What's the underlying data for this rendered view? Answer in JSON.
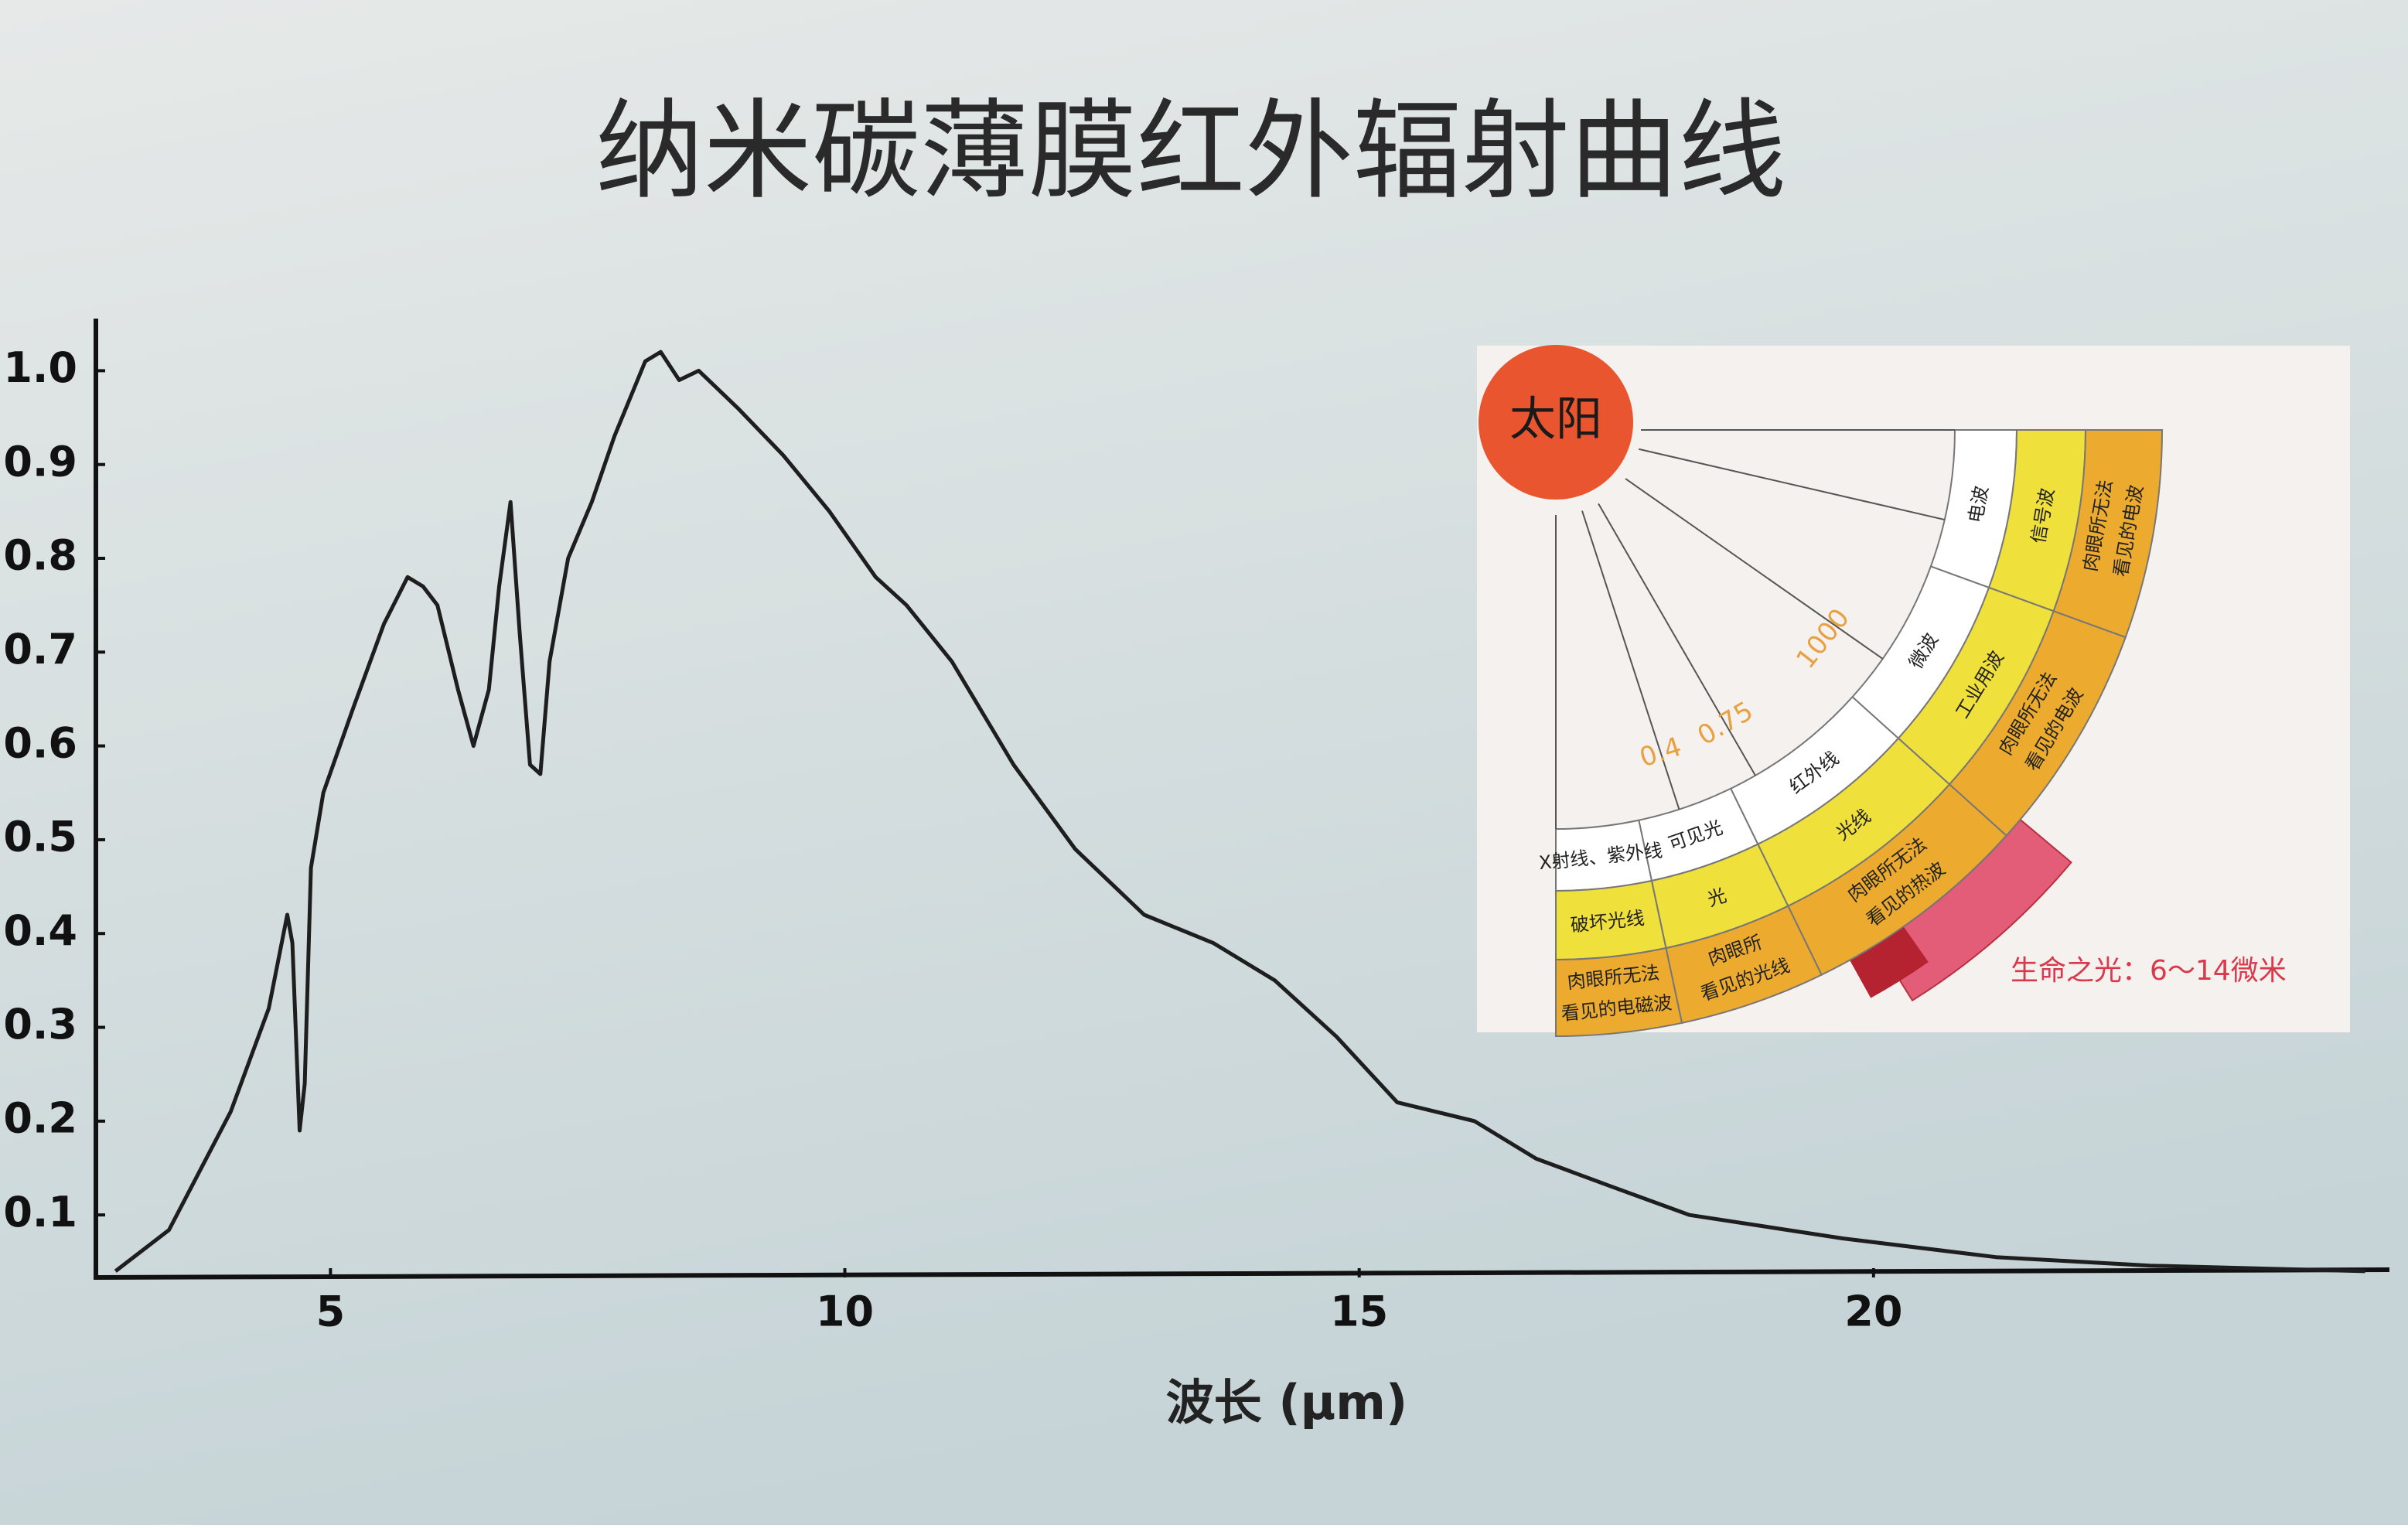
{
  "chart_data": {
    "type": "line",
    "title": "纳米碳薄膜红外辐射曲线",
    "xlabel": "波长 (μm)",
    "color": "#1e1e1e",
    "grid": false,
    "x": [
      2.91,
      3.43,
      4.03,
      4.4,
      4.58,
      4.63,
      4.7,
      4.75,
      4.81,
      4.93,
      5.22,
      5.52,
      5.75,
      5.9,
      6.04,
      6.24,
      6.39,
      6.54,
      6.64,
      6.75,
      6.84,
      6.94,
      7.04,
      7.13,
      7.31,
      7.54,
      7.76,
      8.06,
      8.21,
      8.39,
      8.58,
      8.96,
      9.4,
      9.85,
      10.3,
      10.6,
      11.04,
      11.64,
      12.24,
      12.91,
      13.58,
      14.18,
      14.78,
      15.37,
      16.12,
      16.72,
      17.46,
      18.21,
      19.7,
      21.19,
      22.69,
      24.78
    ],
    "values": [
      0.04,
      0.084,
      0.21,
      0.32,
      0.42,
      0.39,
      0.19,
      0.24,
      0.47,
      0.55,
      0.64,
      0.73,
      0.78,
      0.77,
      0.75,
      0.66,
      0.6,
      0.66,
      0.77,
      0.86,
      0.72,
      0.58,
      0.57,
      0.69,
      0.8,
      0.86,
      0.93,
      1.01,
      1.02,
      0.99,
      1.0,
      0.96,
      0.91,
      0.85,
      0.78,
      0.75,
      0.69,
      0.58,
      0.49,
      0.42,
      0.39,
      0.35,
      0.29,
      0.22,
      0.2,
      0.16,
      0.13,
      0.1,
      0.075,
      0.055,
      0.046,
      0.04
    ],
    "xlim": [
      2.9,
      25
    ],
    "xticks": [
      5,
      10,
      15,
      20
    ],
    "ylim": [
      0.035,
      1.03
    ],
    "yticks": [
      0.1,
      0.2,
      0.3,
      0.4,
      0.5,
      0.6,
      0.7,
      0.8,
      0.9,
      {
        "value": 1,
        "label": "1.0"
      }
    ]
  },
  "inset": {
    "sun": "太阳",
    "wavelengths": [
      "1000",
      "0.75",
      "0.4"
    ],
    "sectors": [
      {
        "outer": [
          "肉眼所无法",
          "看见的电波"
        ],
        "middle": "信号波",
        "inner": "电波"
      },
      {
        "outer": [
          "肉眼所无法",
          "看见的电波"
        ],
        "middle": "工业用波",
        "inner": "微波"
      },
      {
        "outer": [
          "肉眼所无法",
          "看见的热波"
        ],
        "middle": "光线",
        "inner": "红外线"
      },
      {
        "outer": [
          "肉眼所",
          "看见的光线"
        ],
        "middle": "光",
        "inner": "可见光"
      },
      {
        "outer": [
          "肉眼所无法",
          "看见的电磁波"
        ],
        "middle": "破坏光线",
        "inner": "X射线、紫外线"
      }
    ],
    "caption": "生命之光：6～14微米"
  }
}
